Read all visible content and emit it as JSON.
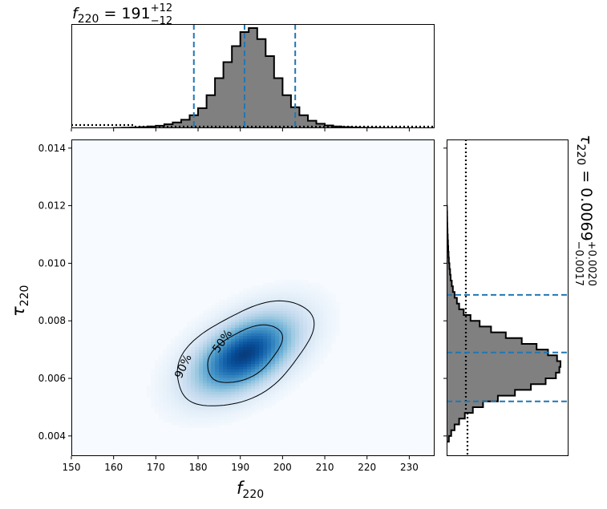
{
  "chart_data": {
    "type": "corner",
    "parameters": [
      "f_220",
      "tau_220"
    ],
    "top_title": {
      "sym": "f",
      "sub": "220",
      "eq": " = 191",
      "sup": "+12",
      "low": "−12"
    },
    "side_title": {
      "sym": "τ",
      "sub": "220",
      "eq": " = 0.0069",
      "sup": "+0.0020",
      "low": "−0.0017"
    },
    "xlabel": {
      "sym": "f",
      "sub": "220"
    },
    "ylabel": {
      "sym": "τ",
      "sub": "220"
    },
    "xlim": [
      150,
      236
    ],
    "ylim": [
      0.0033,
      0.0143
    ],
    "xticks": [
      "150",
      "160",
      "170",
      "180",
      "190",
      "200",
      "210",
      "220",
      "230"
    ],
    "yticks": [
      "0.004",
      "0.006",
      "0.008",
      "0.010",
      "0.012",
      "0.014"
    ],
    "f220_quantiles": {
      "median": 191,
      "lower": 179,
      "upper": 203
    },
    "tau220_quantiles": {
      "median": 0.0069,
      "lower": 0.0052,
      "upper": 0.0089
    },
    "contour_labels": [
      "50%",
      "90%"
    ],
    "f220_hist": {
      "edges": [
        160,
        162,
        164,
        166,
        168,
        170,
        172,
        174,
        176,
        178,
        180,
        182,
        184,
        186,
        188,
        190,
        192,
        194,
        196,
        198,
        200,
        202,
        204,
        206,
        208,
        210,
        212,
        214,
        216,
        218,
        220,
        222,
        224,
        226,
        228,
        230,
        232,
        234,
        236
      ],
      "density": [
        0.003,
        0.005,
        0.008,
        0.012,
        0.018,
        0.025,
        0.04,
        0.058,
        0.085,
        0.13,
        0.2,
        0.33,
        0.5,
        0.66,
        0.82,
        0.96,
        1.0,
        0.89,
        0.72,
        0.5,
        0.33,
        0.21,
        0.13,
        0.075,
        0.045,
        0.028,
        0.018,
        0.012,
        0.008,
        0.005,
        0.004,
        0.003,
        0.002,
        0.002,
        0.001,
        0.001,
        0.001,
        0.001
      ]
    },
    "tau220_hist": {
      "edges": [
        0.0038,
        0.004,
        0.0042,
        0.0044,
        0.0046,
        0.0048,
        0.005,
        0.0052,
        0.0054,
        0.0056,
        0.0058,
        0.006,
        0.0062,
        0.0064,
        0.0066,
        0.0068,
        0.007,
        0.0072,
        0.0074,
        0.0076,
        0.0078,
        0.008,
        0.0082,
        0.0084,
        0.0086,
        0.0088,
        0.009,
        0.0092,
        0.0094,
        0.0096,
        0.0098,
        0.01,
        0.0102,
        0.0104,
        0.0106,
        0.0108,
        0.011,
        0.0112,
        0.0114,
        0.0116,
        0.0118,
        0.012
      ],
      "density": [
        0.02,
        0.04,
        0.07,
        0.11,
        0.16,
        0.23,
        0.32,
        0.45,
        0.6,
        0.74,
        0.87,
        0.96,
        0.99,
        1.0,
        0.97,
        0.89,
        0.79,
        0.66,
        0.52,
        0.39,
        0.29,
        0.21,
        0.15,
        0.11,
        0.09,
        0.07,
        0.055,
        0.045,
        0.035,
        0.03,
        0.025,
        0.02,
        0.017,
        0.014,
        0.012,
        0.01,
        0.008,
        0.006,
        0.005,
        0.004,
        0.003
      ]
    },
    "prior_level": 0.025
  },
  "colors": {
    "quantile_line": "#1f77b4",
    "hist_fill": "#808080",
    "density_cmap": "Blues"
  }
}
